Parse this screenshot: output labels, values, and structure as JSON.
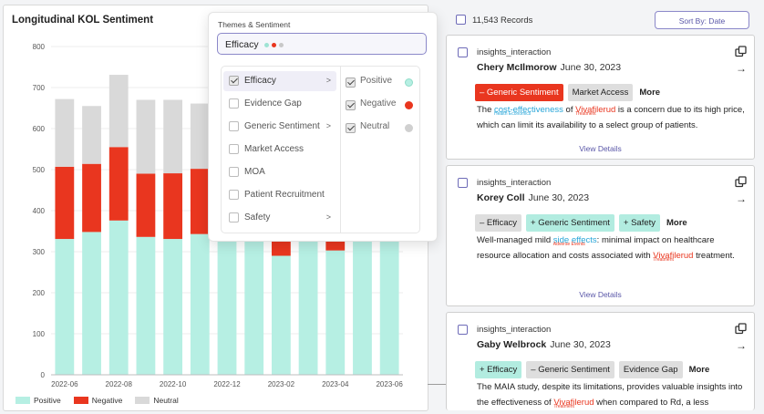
{
  "chart": {
    "title": "Longitudinal KOL Sentiment",
    "legend": [
      {
        "label": "Positive",
        "color": "#b6efe3"
      },
      {
        "label": "Negative",
        "color": "#e9361f"
      },
      {
        "label": "Neutral",
        "color": "#d9d9d9"
      }
    ]
  },
  "chart_data": {
    "type": "bar",
    "stacked": true,
    "title": "Longitudinal KOL Sentiment",
    "categories": [
      "2022-06",
      "2022-07",
      "2022-08",
      "2022-09",
      "2022-10",
      "2022-11",
      "2022-12",
      "2023-01",
      "2023-02",
      "2023-03",
      "2023-04",
      "2023-05",
      "2023-06"
    ],
    "x_tick_labels": [
      "2022-06",
      "2022-08",
      "2022-10",
      "2022-12",
      "2023-02",
      "2023-04",
      "2023-06"
    ],
    "y_ticks": [
      0,
      100,
      200,
      300,
      400,
      500,
      600,
      700,
      800
    ],
    "ylim": [
      0,
      800
    ],
    "series": [
      {
        "name": "Positive",
        "color": "#b6efe3",
        "values": [
          331,
          348,
          376,
          336,
          331,
          343,
          330,
          330,
          290,
          330,
          303,
          330,
          330
        ]
      },
      {
        "name": "Negative",
        "color": "#e9361f",
        "values": [
          176,
          166,
          179,
          154,
          160,
          159,
          0,
          0,
          40,
          0,
          22,
          0,
          0
        ]
      },
      {
        "name": "Neutral",
        "color": "#d9d9d9",
        "values": [
          165,
          141,
          176,
          180,
          179,
          159,
          0,
          0,
          0,
          0,
          0,
          0,
          0
        ]
      }
    ]
  },
  "dropdown": {
    "label": "Themes & Sentiment",
    "input_value": "Efficacy",
    "input_dots": [
      "#9fe3d4",
      "#e9361f",
      "#c8c8c8"
    ],
    "themes": [
      {
        "label": "Efficacy",
        "checked": true,
        "chevron": ">",
        "active": true
      },
      {
        "label": "Evidence Gap",
        "checked": false,
        "chevron": ""
      },
      {
        "label": "Generic Sentiment",
        "checked": false,
        "chevron": ">"
      },
      {
        "label": "Market Access",
        "checked": false,
        "chevron": ""
      },
      {
        "label": "MOA",
        "checked": false,
        "chevron": ""
      },
      {
        "label": "Patient Recruitment",
        "checked": false,
        "chevron": ""
      },
      {
        "label": "Safety",
        "checked": false,
        "chevron": ">"
      }
    ],
    "sentiments": [
      {
        "label": "Positive",
        "checked": true,
        "color": "#9fe3d4"
      },
      {
        "label": "Negative",
        "checked": true,
        "color": "#e9361f"
      },
      {
        "label": "Neutral",
        "checked": true,
        "color": "#c8c8c8"
      }
    ]
  },
  "records": {
    "count_label": "11,543 Records",
    "sort_label": "Sort By: Date"
  },
  "cards": [
    {
      "type": "insights_interaction",
      "name": "Chery McIlmorow",
      "date": "June 30, 2023",
      "tags": [
        {
          "label": "– Generic Sentiment",
          "kind": "neg"
        },
        {
          "label": "Market Access",
          "kind": "neu"
        }
      ],
      "more": "More",
      "text": {
        "p1": "The ",
        "h1": "cost-effectiveness",
        "h1_sub": "Health Economics",
        "p2": " of ",
        "h2": "Vivafilerud",
        "h2_sub": "Treatment",
        "p3": " is a concern due to its high price, which can limit its availability to a select group of patients."
      },
      "view_details": "View Details"
    },
    {
      "type": "insights_interaction",
      "name": "Korey Coll",
      "date": "June 30, 2023",
      "tags": [
        {
          "label": "– Efficacy",
          "kind": "neu"
        },
        {
          "label": "+ Generic Sentiment",
          "kind": "pos"
        },
        {
          "label": "+ Safety",
          "kind": "pos"
        }
      ],
      "more": "More",
      "text": {
        "p1": "Well-managed mild ",
        "h1": "side effects",
        "h1_sub": "Adverse Events",
        "p2": ": minimal impact on healthcare resource allocation and costs associated with ",
        "h2": "Vivafilerud",
        "h2_sub": "Treatment",
        "p3": " treatment."
      },
      "view_details": "View Details"
    },
    {
      "type": "insights_interaction",
      "name": "Gaby Welbrock",
      "date": "June 30, 2023",
      "tags": [
        {
          "label": "+ Efficacy",
          "kind": "pos"
        },
        {
          "label": "– Generic Sentiment",
          "kind": "neu"
        },
        {
          "label": "Evidence Gap",
          "kind": "neu"
        }
      ],
      "more": "More",
      "text": {
        "p1": "The MAIA study, despite its limitations, provides valuable insights into the effectiveness of ",
        "h1": "",
        "h1_sub": "",
        "p2": "",
        "h2": "Vivafilerud",
        "h2_sub": "Treatment",
        "p3": " when compared to Rd, a less"
      },
      "view_details": ""
    }
  ]
}
